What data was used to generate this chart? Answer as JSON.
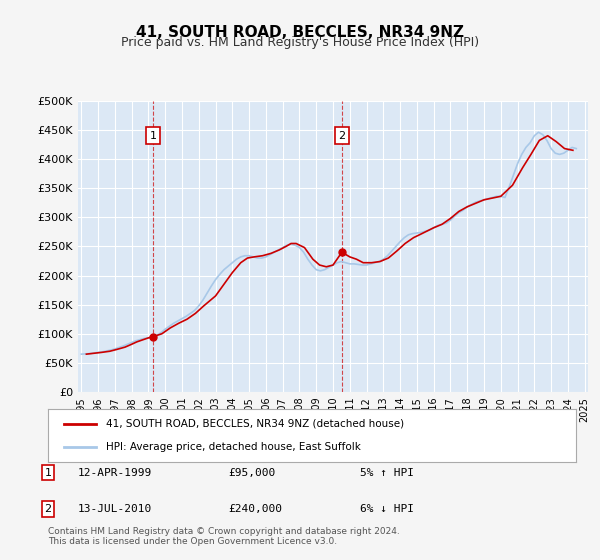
{
  "title": "41, SOUTH ROAD, BECCLES, NR34 9NZ",
  "subtitle": "Price paid vs. HM Land Registry's House Price Index (HPI)",
  "ylim": [
    0,
    500000
  ],
  "yticks": [
    0,
    50000,
    100000,
    150000,
    200000,
    250000,
    300000,
    350000,
    400000,
    450000,
    500000
  ],
  "ytick_labels": [
    "£0",
    "£50K",
    "£100K",
    "£150K",
    "£200K",
    "£250K",
    "£300K",
    "£350K",
    "£400K",
    "£450K",
    "£500K"
  ],
  "hpi_color": "#a8c8e8",
  "price_color": "#cc0000",
  "background_color": "#e8f0f8",
  "plot_bg_color": "#dce8f5",
  "grid_color": "#ffffff",
  "marker1_year": 1999.28,
  "marker1_value": 95000,
  "marker2_year": 2010.53,
  "marker2_value": 240000,
  "legend_label1": "41, SOUTH ROAD, BECCLES, NR34 9NZ (detached house)",
  "legend_label2": "HPI: Average price, detached house, East Suffolk",
  "note1_label": "1",
  "note1_date": "12-APR-1999",
  "note1_price": "£95,000",
  "note1_hpi": "5% ↑ HPI",
  "note2_label": "2",
  "note2_date": "13-JUL-2010",
  "note2_price": "£240,000",
  "note2_hpi": "6% ↓ HPI",
  "footer": "Contains HM Land Registry data © Crown copyright and database right 2024.\nThis data is licensed under the Open Government Licence v3.0.",
  "hpi_data_x": [
    1995.0,
    1995.25,
    1995.5,
    1995.75,
    1996.0,
    1996.25,
    1996.5,
    1996.75,
    1997.0,
    1997.25,
    1997.5,
    1997.75,
    1998.0,
    1998.25,
    1998.5,
    1998.75,
    1999.0,
    1999.25,
    1999.5,
    1999.75,
    2000.0,
    2000.25,
    2000.5,
    2000.75,
    2001.0,
    2001.25,
    2001.5,
    2001.75,
    2002.0,
    2002.25,
    2002.5,
    2002.75,
    2003.0,
    2003.25,
    2003.5,
    2003.75,
    2004.0,
    2004.25,
    2004.5,
    2004.75,
    2005.0,
    2005.25,
    2005.5,
    2005.75,
    2006.0,
    2006.25,
    2006.5,
    2006.75,
    2007.0,
    2007.25,
    2007.5,
    2007.75,
    2008.0,
    2008.25,
    2008.5,
    2008.75,
    2009.0,
    2009.25,
    2009.5,
    2009.75,
    2010.0,
    2010.25,
    2010.5,
    2010.75,
    2011.0,
    2011.25,
    2011.5,
    2011.75,
    2012.0,
    2012.25,
    2012.5,
    2012.75,
    2013.0,
    2013.25,
    2013.5,
    2013.75,
    2014.0,
    2014.25,
    2014.5,
    2014.75,
    2015.0,
    2015.25,
    2015.5,
    2015.75,
    2016.0,
    2016.25,
    2016.5,
    2016.75,
    2017.0,
    2017.25,
    2017.5,
    2017.75,
    2018.0,
    2018.25,
    2018.5,
    2018.75,
    2019.0,
    2019.25,
    2019.5,
    2019.75,
    2020.0,
    2020.25,
    2020.5,
    2020.75,
    2021.0,
    2021.25,
    2021.5,
    2021.75,
    2022.0,
    2022.25,
    2022.5,
    2022.75,
    2023.0,
    2023.25,
    2023.5,
    2023.75,
    2024.0,
    2024.25,
    2024.5
  ],
  "hpi_data_y": [
    65000,
    65500,
    66000,
    67000,
    68000,
    69000,
    70500,
    72000,
    74000,
    76500,
    79000,
    82000,
    85000,
    88000,
    90000,
    92000,
    93000,
    94000,
    97000,
    102000,
    108000,
    113000,
    118000,
    122000,
    126000,
    130000,
    135000,
    140000,
    148000,
    158000,
    170000,
    182000,
    193000,
    202000,
    210000,
    216000,
    222000,
    228000,
    232000,
    234000,
    234000,
    232000,
    230000,
    230000,
    232000,
    236000,
    240000,
    244000,
    248000,
    252000,
    254000,
    252000,
    248000,
    240000,
    228000,
    218000,
    210000,
    208000,
    210000,
    214000,
    218000,
    222000,
    224000,
    222000,
    220000,
    220000,
    219000,
    218000,
    218000,
    220000,
    222000,
    224000,
    228000,
    234000,
    242000,
    250000,
    258000,
    265000,
    270000,
    272000,
    273000,
    274000,
    276000,
    278000,
    282000,
    286000,
    288000,
    290000,
    295000,
    302000,
    308000,
    312000,
    318000,
    322000,
    326000,
    328000,
    330000,
    332000,
    334000,
    336000,
    336000,
    334000,
    352000,
    372000,
    392000,
    408000,
    420000,
    428000,
    440000,
    446000,
    442000,
    432000,
    418000,
    410000,
    408000,
    410000,
    415000,
    420000,
    418000
  ],
  "price_data_x": [
    1995.3,
    1996.2,
    1996.7,
    1997.1,
    1997.6,
    1998.0,
    1998.3,
    1998.7,
    1999.0,
    1999.28,
    1999.8,
    2000.3,
    2000.8,
    2001.3,
    2001.8,
    2002.3,
    2003.0,
    2003.5,
    2004.0,
    2004.5,
    2004.9,
    2005.3,
    2005.8,
    2006.3,
    2006.8,
    2007.2,
    2007.5,
    2007.8,
    2008.3,
    2008.8,
    2009.2,
    2009.6,
    2010.0,
    2010.53,
    2011.0,
    2011.4,
    2011.8,
    2012.3,
    2012.8,
    2013.3,
    2013.8,
    2014.3,
    2014.8,
    2015.3,
    2016.0,
    2016.5,
    2017.0,
    2017.5,
    2018.0,
    2018.5,
    2019.0,
    2019.5,
    2020.0,
    2020.7,
    2021.3,
    2021.8,
    2022.3,
    2022.8,
    2023.3,
    2023.8,
    2024.3
  ],
  "price_data_y": [
    65000,
    68000,
    70000,
    73000,
    77000,
    82000,
    86000,
    90000,
    93000,
    95000,
    100000,
    110000,
    118000,
    125000,
    135000,
    148000,
    165000,
    185000,
    205000,
    222000,
    230000,
    232000,
    234000,
    238000,
    244000,
    250000,
    255000,
    255000,
    248000,
    228000,
    218000,
    215000,
    218000,
    240000,
    232000,
    228000,
    222000,
    222000,
    224000,
    230000,
    242000,
    255000,
    265000,
    272000,
    282000,
    288000,
    298000,
    310000,
    318000,
    324000,
    330000,
    333000,
    336000,
    355000,
    385000,
    408000,
    432000,
    440000,
    430000,
    418000,
    415000
  ]
}
